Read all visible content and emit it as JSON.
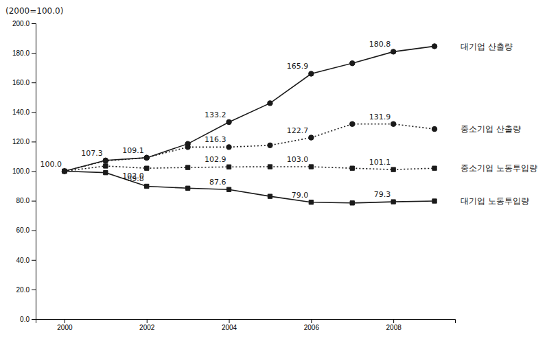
{
  "chart_data": {
    "type": "line",
    "ylabel": "(2000=100.0)",
    "color": "#1a1a1a",
    "x": [
      2000,
      2001,
      2002,
      2003,
      2004,
      2005,
      2006,
      2007,
      2008,
      2009
    ],
    "xlim": [
      1999.3,
      2009.5
    ],
    "xticks": [
      2000,
      2002,
      2004,
      2006,
      2008
    ],
    "ylim": [
      0.0,
      200.0
    ],
    "yticks": [
      {
        "value": 0.0,
        "label": "0.0"
      },
      {
        "value": 20.0,
        "label": "20.0"
      },
      {
        "value": 40.0,
        "label": "40.0"
      },
      {
        "value": 60.0,
        "label": "60.0"
      },
      {
        "value": 80.0,
        "label": "80.0"
      },
      {
        "value": 100.0,
        "label": "100.0"
      },
      {
        "value": 120.0,
        "label": "120.0"
      },
      {
        "value": 140.0,
        "label": "140.0"
      },
      {
        "value": 160.0,
        "label": "160.0"
      },
      {
        "value": 180.0,
        "label": "180.0"
      },
      {
        "value": 200.0,
        "label": "200.0"
      }
    ],
    "grid": false,
    "series": [
      {
        "name": "대기업 산출량",
        "line_style": "solid",
        "marker": "circle",
        "values": [
          100.0,
          107.3,
          109.1,
          118.5,
          133.2,
          146.0,
          165.9,
          173.0,
          180.8,
          184.5
        ]
      },
      {
        "name": "중소기업 산출량",
        "line_style": "dotted",
        "marker": "circle",
        "values": [
          100.0,
          107.0,
          109.1,
          116.3,
          116.3,
          117.5,
          122.7,
          131.9,
          131.9,
          128.5
        ]
      },
      {
        "name": "중소기업 노동투입량",
        "line_style": "dotted",
        "marker": "square",
        "values": [
          100.0,
          103.5,
          102.0,
          102.5,
          102.9,
          103.0,
          103.0,
          102.0,
          101.1,
          102.0
        ]
      },
      {
        "name": "대기업 노동투입량",
        "line_style": "solid",
        "marker": "square",
        "values": [
          100.0,
          99.0,
          89.8,
          88.5,
          87.6,
          83.0,
          79.0,
          78.5,
          79.3,
          79.8
        ]
      }
    ],
    "annotations": [
      {
        "x": 2000,
        "y": 100.0,
        "label": "100.0"
      },
      {
        "x": 2001,
        "y": 107.3,
        "label": "107.3"
      },
      {
        "x": 2002,
        "y": 109.1,
        "label": "109.1"
      },
      {
        "x": 2004,
        "y": 133.2,
        "label": "133.2"
      },
      {
        "x": 2006,
        "y": 165.9,
        "label": "165.9"
      },
      {
        "x": 2008,
        "y": 180.8,
        "label": "180.8"
      },
      {
        "x": 2002,
        "y": 102.0,
        "label": "102.0"
      },
      {
        "x": 2004,
        "y": 116.3,
        "label": "116.3"
      },
      {
        "x": 2006,
        "y": 122.7,
        "label": "122.7"
      },
      {
        "x": 2008,
        "y": 131.9,
        "label": "131.9"
      },
      {
        "x": 2004,
        "y": 102.9,
        "label": "102.9"
      },
      {
        "x": 2006,
        "y": 103.0,
        "label": "103.0"
      },
      {
        "x": 2008,
        "y": 101.1,
        "label": "101.1"
      },
      {
        "x": 2002,
        "y": 89.8,
        "label": "89.8"
      },
      {
        "x": 2004,
        "y": 87.6,
        "label": "87.6"
      },
      {
        "x": 2006,
        "y": 79.0,
        "label": "79.0"
      },
      {
        "x": 2008,
        "y": 79.3,
        "label": "79.3"
      }
    ]
  }
}
